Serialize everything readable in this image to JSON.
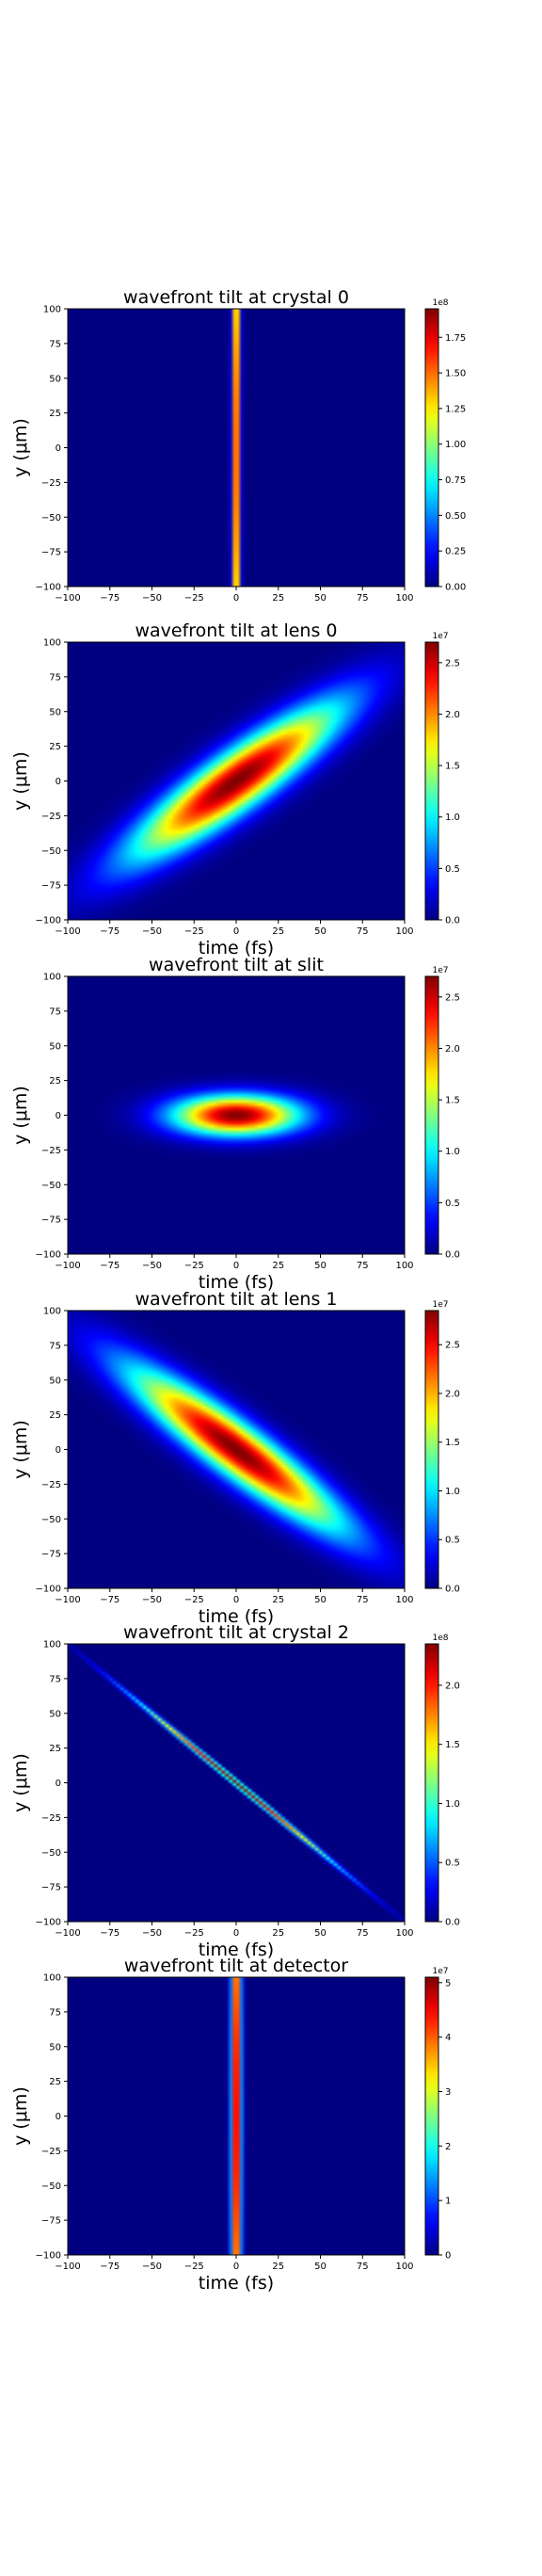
{
  "chart_data": [
    {
      "type": "heatmap",
      "title": "wavefront tilt at crystal 0",
      "xlabel": "",
      "ylabel": "y (μm)",
      "xlim": [
        -100,
        100
      ],
      "ylim": [
        -100,
        100
      ],
      "xticks": [
        "−100",
        "−75",
        "−50",
        "−25",
        "0",
        "25",
        "50",
        "75",
        "100"
      ],
      "yticks": [
        "100",
        "75",
        "50",
        "25",
        "0",
        "−25",
        "−50",
        "−75",
        "−100"
      ],
      "colormap": "jet",
      "colorbar": {
        "offset": "1e8",
        "max": 1.95,
        "ticks": [
          "1.75",
          "1.50",
          "1.25",
          "1.00",
          "0.75",
          "0.50",
          "0.25",
          "0.00"
        ],
        "tick_values": [
          1.75,
          1.5,
          1.25,
          1.0,
          0.75,
          0.5,
          0.25,
          0.0
        ]
      },
      "pulse": {
        "center": [
          0,
          0
        ],
        "sigma_t_fs": 1.5,
        "sigma_y_um": 200,
        "tilt_fs_per_um": 0
      }
    },
    {
      "type": "heatmap",
      "title": "wavefront tilt at lens 0",
      "xlabel": "time (fs)",
      "ylabel": "y (μm)",
      "xlim": [
        -100,
        100
      ],
      "ylim": [
        -100,
        100
      ],
      "xticks": [
        "−100",
        "−75",
        "−50",
        "−25",
        "0",
        "25",
        "50",
        "75",
        "100"
      ],
      "yticks": [
        "100",
        "75",
        "50",
        "25",
        "0",
        "−25",
        "−50",
        "−75",
        "−100"
      ],
      "colormap": "jet",
      "colorbar": {
        "offset": "1e7",
        "max": 2.7,
        "ticks": [
          "2.5",
          "2.0",
          "1.5",
          "1.0",
          "0.5",
          "0.0"
        ],
        "tick_values": [
          2.5,
          2.0,
          1.5,
          1.0,
          0.5,
          0.0
        ]
      },
      "pulse": {
        "center": [
          0,
          0
        ],
        "sigma_t_fs": 19,
        "sigma_y_um": 38,
        "tilt_fs_per_um": 1.0
      }
    },
    {
      "type": "heatmap",
      "title": "wavefront tilt at slit",
      "xlabel": "time (fs)",
      "ylabel": "y (μm)",
      "xlim": [
        -100,
        100
      ],
      "ylim": [
        -100,
        100
      ],
      "xticks": [
        "−100",
        "−75",
        "−50",
        "−25",
        "0",
        "25",
        "50",
        "75",
        "100"
      ],
      "yticks": [
        "100",
        "75",
        "50",
        "25",
        "0",
        "−25",
        "−50",
        "−75",
        "−100"
      ],
      "colormap": "jet",
      "colorbar": {
        "offset": "1e7",
        "max": 2.7,
        "ticks": [
          "2.5",
          "2.0",
          "1.5",
          "1.0",
          "0.5",
          "0.0"
        ],
        "tick_values": [
          2.5,
          2.0,
          1.5,
          1.0,
          0.5,
          0.0
        ]
      },
      "pulse": {
        "center": [
          0,
          0
        ],
        "sigma_t_fs": 26,
        "sigma_y_um": 10,
        "tilt_fs_per_um": 0
      }
    },
    {
      "type": "heatmap",
      "title": "wavefront tilt at lens 1",
      "xlabel": "time (fs)",
      "ylabel": "y (μm)",
      "xlim": [
        -100,
        100
      ],
      "ylim": [
        -100,
        100
      ],
      "xticks": [
        "−100",
        "−75",
        "−50",
        "−25",
        "0",
        "25",
        "50",
        "75",
        "100"
      ],
      "yticks": [
        "100",
        "75",
        "50",
        "25",
        "0",
        "−25",
        "−50",
        "−75",
        "−100"
      ],
      "colormap": "jet",
      "colorbar": {
        "offset": "1e7",
        "max": 2.85,
        "ticks": [
          "2.5",
          "2.0",
          "1.5",
          "1.0",
          "0.5",
          "0.0"
        ],
        "tick_values": [
          2.5,
          2.0,
          1.5,
          1.0,
          0.5,
          0.0
        ]
      },
      "pulse": {
        "center": [
          0,
          0
        ],
        "sigma_t_fs": 17,
        "sigma_y_um": 40,
        "tilt_fs_per_um": -1.0
      }
    },
    {
      "type": "heatmap",
      "title": "wavefront tilt at crystal 2",
      "xlabel": "time (fs)",
      "ylabel": "y (μm)",
      "xlim": [
        -100,
        100
      ],
      "ylim": [
        -100,
        100
      ],
      "xticks": [
        "−100",
        "−75",
        "−50",
        "−25",
        "0",
        "25",
        "50",
        "75",
        "100"
      ],
      "yticks": [
        "100",
        "75",
        "50",
        "25",
        "0",
        "−25",
        "−50",
        "−75",
        "−100"
      ],
      "colormap": "jet",
      "colorbar": {
        "offset": "1e8",
        "max": 2.35,
        "ticks": [
          "2.0",
          "1.5",
          "1.0",
          "0.5",
          "0.0"
        ],
        "tick_values": [
          2.0,
          1.5,
          1.0,
          0.5,
          0.0
        ]
      },
      "pulse": {
        "center": [
          0,
          0
        ],
        "sigma_t_fs": 1.6,
        "sigma_y_um": 40,
        "tilt_fs_per_um": -1.0
      }
    },
    {
      "type": "heatmap",
      "title": "wavefront tilt at detector",
      "xlabel": "time (fs)",
      "ylabel": "y (μm)",
      "xlim": [
        -100,
        100
      ],
      "ylim": [
        -100,
        100
      ],
      "xticks": [
        "−100",
        "−75",
        "−50",
        "−25",
        "0",
        "25",
        "50",
        "75",
        "100"
      ],
      "yticks": [
        "100",
        "75",
        "50",
        "25",
        "0",
        "−25",
        "−50",
        "−75",
        "−100"
      ],
      "colormap": "jet",
      "colorbar": {
        "offset": "1e7",
        "max": 5.1,
        "ticks": [
          "5",
          "4",
          "3",
          "2",
          "1",
          "0"
        ],
        "tick_values": [
          5,
          4,
          3,
          2,
          1,
          0
        ]
      },
      "pulse": {
        "center": [
          0,
          0
        ],
        "sigma_t_fs": 2.0,
        "sigma_y_um": 200,
        "tilt_fs_per_um": 0
      }
    }
  ]
}
